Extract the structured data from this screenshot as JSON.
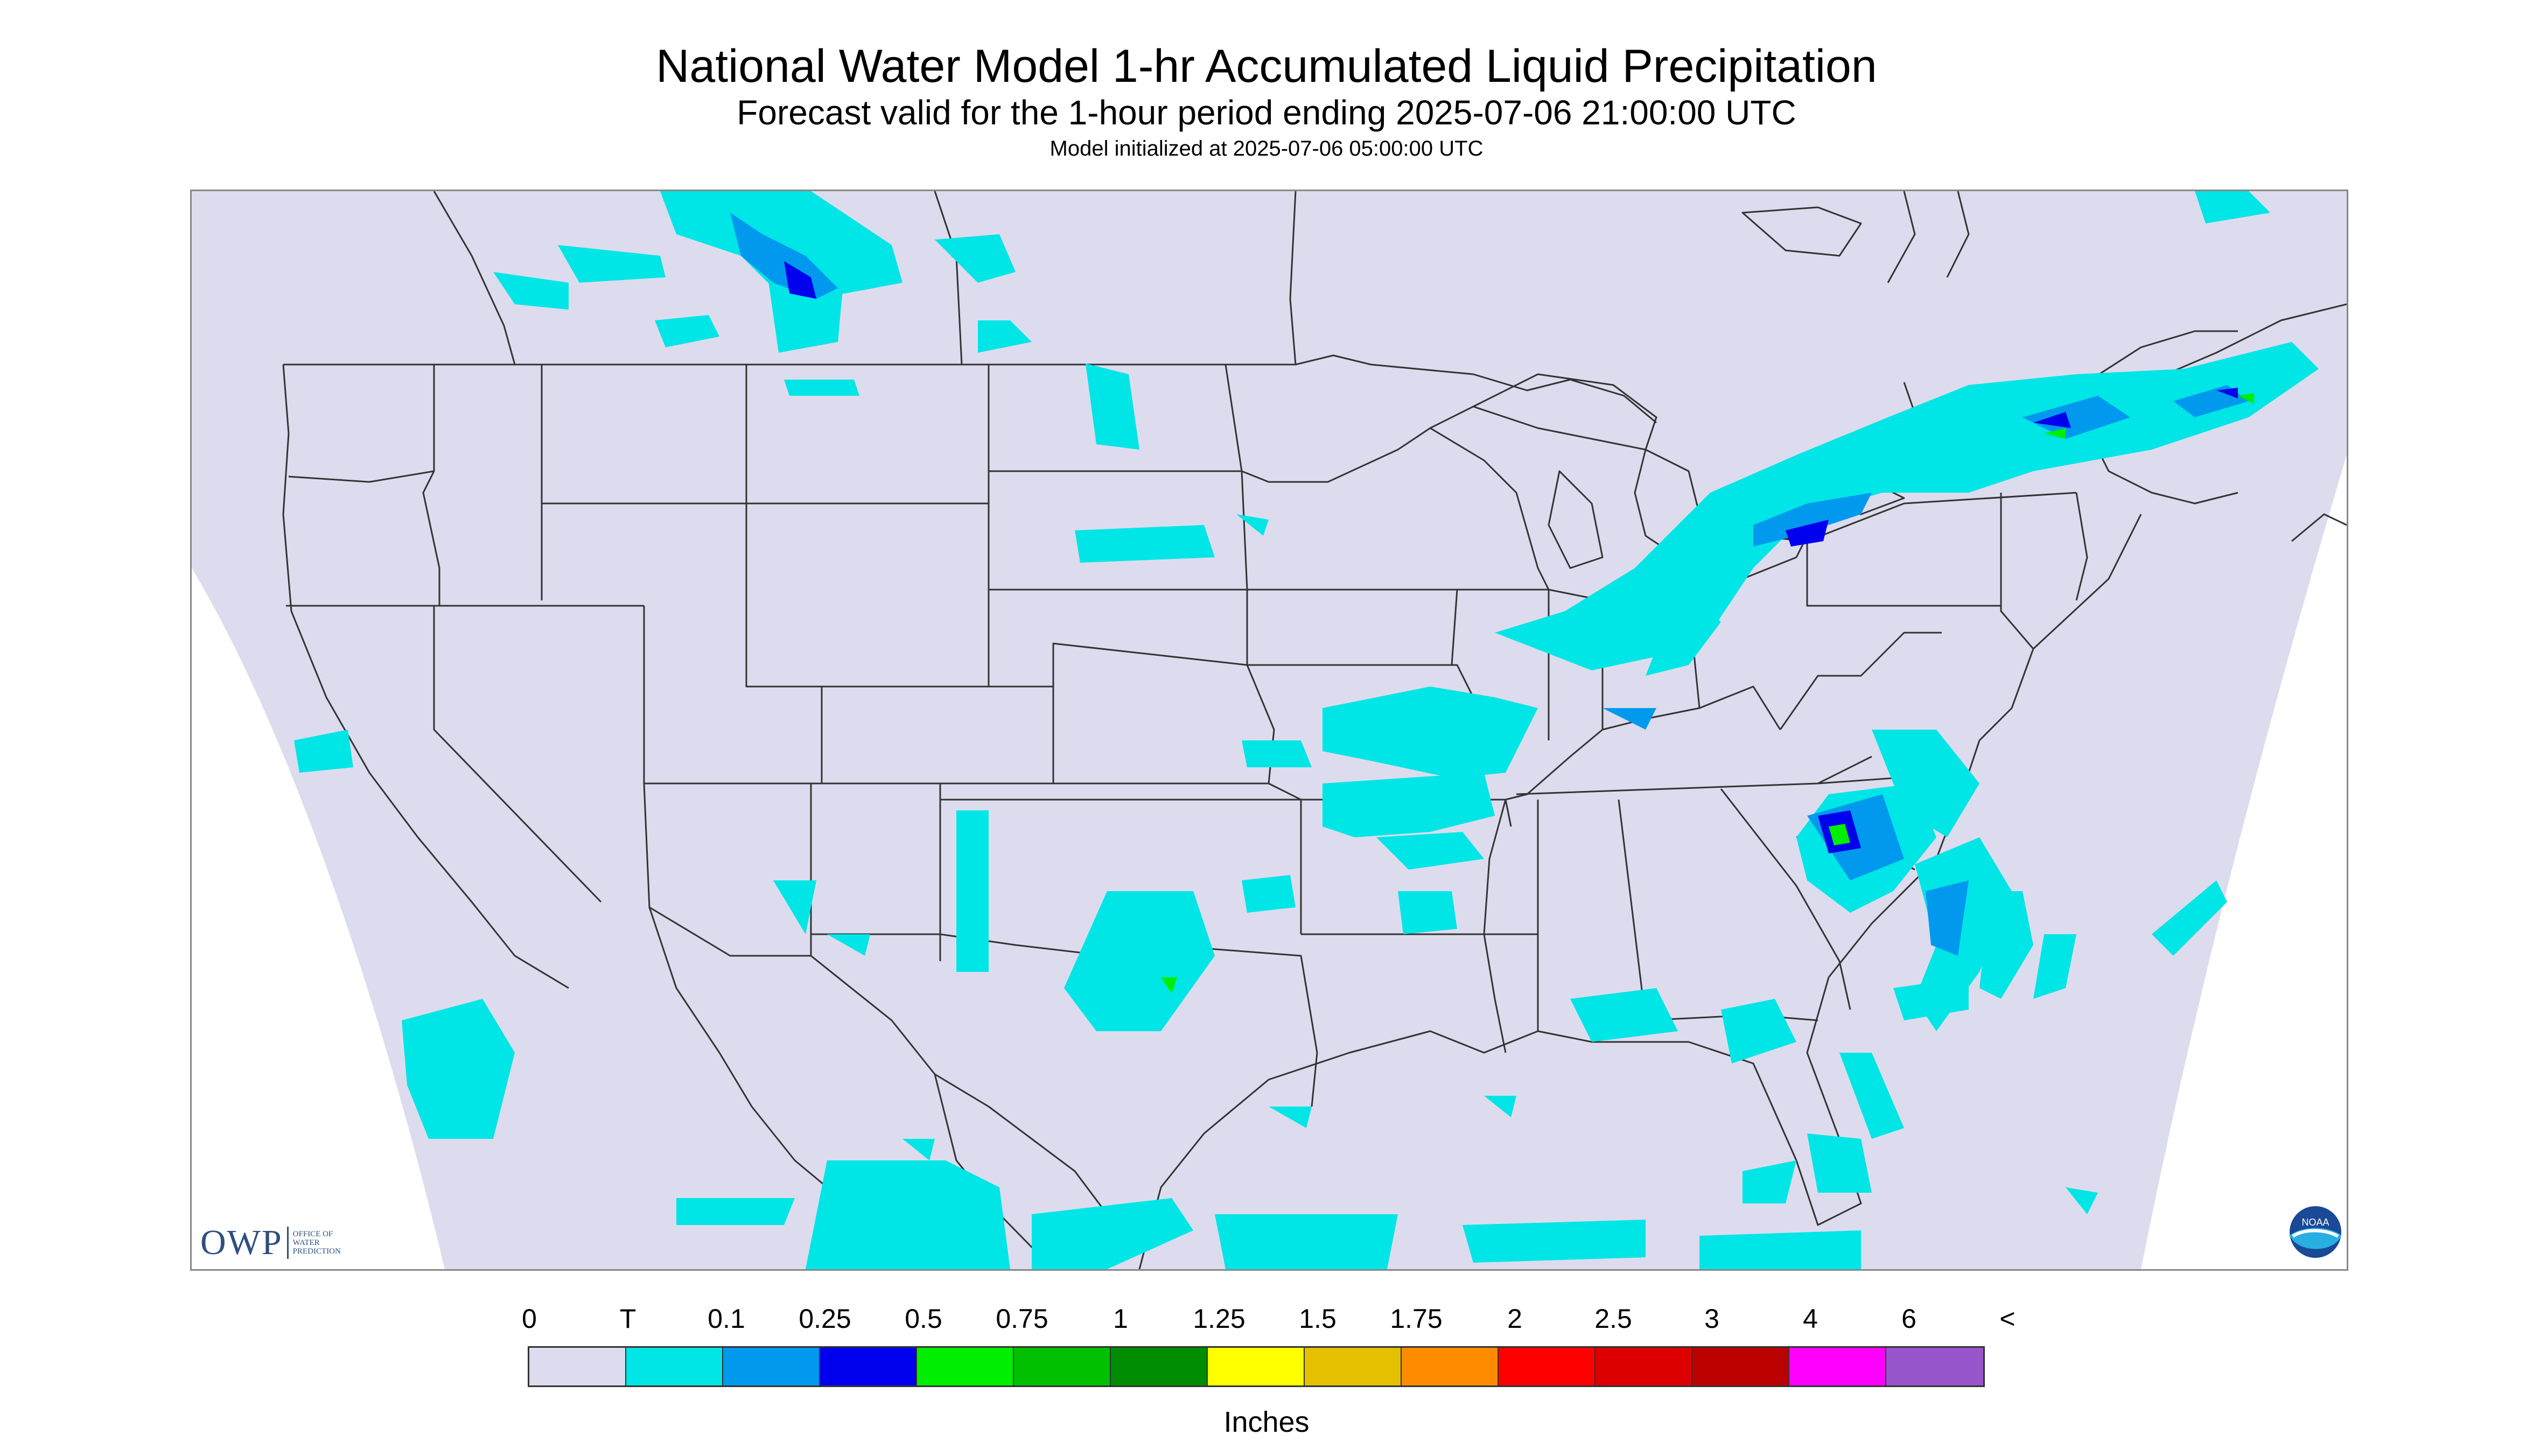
{
  "title": "National Water Model 1-hr Accumulated Liquid Precipitation",
  "subtitle": "Forecast valid for the 1-hour period ending 2025-07-06 21:00:00 UTC",
  "init_text": "Model initialized at 2025-07-06 05:00:00 UTC",
  "units": "Inches",
  "colors": {
    "background_domain": "#dcdcee",
    "trace": "#00e5e5",
    "light": "#0099ee",
    "blue": "#0000ee",
    "green": "#00ee00",
    "boundary": "#333333"
  },
  "logos": {
    "owp_mark": "OWP",
    "owp_text_lines": [
      "OFFICE OF",
      "WATER",
      "PREDICTION"
    ],
    "noaa_text": "NOAA"
  },
  "legend": {
    "labels": [
      "0",
      "T",
      "0.1",
      "0.25",
      "0.5",
      "0.75",
      "1",
      "1.25",
      "1.5",
      "1.75",
      "2",
      "2.5",
      "3",
      "4",
      "6",
      "<"
    ],
    "colors": [
      "#dcdcee",
      "#00e5e5",
      "#0099ee",
      "#0000ee",
      "#00ee00",
      "#00c000",
      "#008c00",
      "#ffff00",
      "#e5c000",
      "#ff8c00",
      "#ff0000",
      "#dd0000",
      "#bb0000",
      "#ff00ff",
      "#9955cc"
    ]
  }
}
